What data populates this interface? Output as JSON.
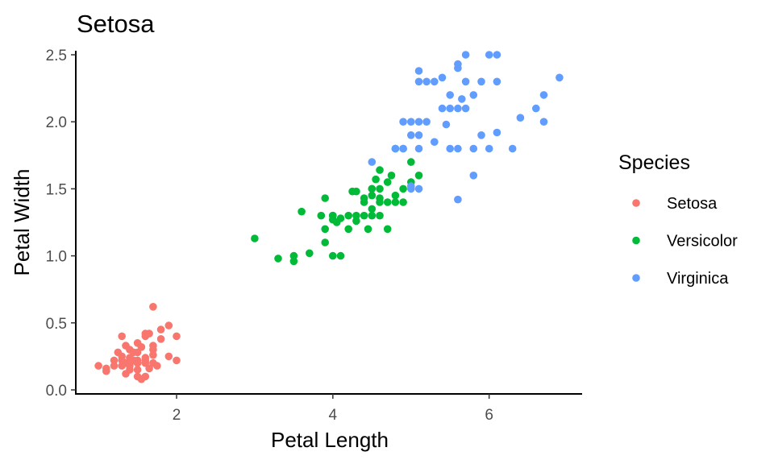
{
  "chart_data": {
    "type": "scatter",
    "title": "Setosa",
    "xlabel": "Petal Length",
    "ylabel": "Petal Width",
    "xlim": [
      0.71,
      7.19
    ],
    "ylim": [
      -0.03,
      2.53
    ],
    "x_ticks": [
      2,
      4,
      6
    ],
    "x_tick_labels": [
      "2",
      "4",
      "6"
    ],
    "y_ticks": [
      0,
      0.5,
      1,
      1.5,
      2,
      2.5
    ],
    "y_tick_labels": [
      "0.0",
      "0.5",
      "1.0",
      "1.5",
      "2.0",
      "2.5"
    ],
    "grid": false,
    "legend": {
      "title": "Species",
      "position": "right"
    },
    "series": [
      {
        "name": "Setosa",
        "color": "#F8766D",
        "points": [
          [
            1.0,
            0.18
          ],
          [
            1.1,
            0.14
          ],
          [
            1.2,
            0.18
          ],
          [
            1.2,
            0.22
          ],
          [
            1.3,
            0.18
          ],
          [
            1.3,
            0.25
          ],
          [
            1.3,
            0.22
          ],
          [
            1.3,
            0.4
          ],
          [
            1.35,
            0.2
          ],
          [
            1.35,
            0.33
          ],
          [
            1.4,
            0.2
          ],
          [
            1.4,
            0.15
          ],
          [
            1.4,
            0.24
          ],
          [
            1.4,
            0.3
          ],
          [
            1.4,
            0.2
          ],
          [
            1.4,
            0.18
          ],
          [
            1.45,
            0.28
          ],
          [
            1.5,
            0.2
          ],
          [
            1.5,
            0.1
          ],
          [
            1.5,
            0.22
          ],
          [
            1.5,
            0.15
          ],
          [
            1.5,
            0.28
          ],
          [
            1.5,
            0.35
          ],
          [
            1.5,
            0.2
          ],
          [
            1.55,
            0.08
          ],
          [
            1.6,
            0.2
          ],
          [
            1.6,
            0.22
          ],
          [
            1.6,
            0.4
          ],
          [
            1.6,
            0.42
          ],
          [
            1.6,
            0.24
          ],
          [
            1.65,
            0.16
          ],
          [
            1.7,
            0.33
          ],
          [
            1.7,
            0.62
          ],
          [
            1.7,
            0.2
          ],
          [
            1.7,
            0.26
          ],
          [
            1.75,
            0.18
          ],
          [
            1.8,
            0.45
          ],
          [
            1.8,
            0.38
          ],
          [
            1.9,
            0.25
          ],
          [
            1.9,
            0.48
          ],
          [
            1.6,
            0.1
          ],
          [
            1.25,
            0.28
          ],
          [
            1.45,
            0.22
          ],
          [
            1.55,
            0.32
          ],
          [
            1.65,
            0.42
          ],
          [
            1.35,
            0.12
          ],
          [
            1.7,
            0.3
          ],
          [
            2.0,
            0.22
          ],
          [
            2.0,
            0.4
          ],
          [
            1.1,
            0.16
          ]
        ]
      },
      {
        "name": "Versicolor",
        "color": "#00BA38",
        "points": [
          [
            3.0,
            1.13
          ],
          [
            3.3,
            0.98
          ],
          [
            3.5,
            1.0
          ],
          [
            3.5,
            0.96
          ],
          [
            3.6,
            1.33
          ],
          [
            3.7,
            1.02
          ],
          [
            3.9,
            1.1
          ],
          [
            3.9,
            1.43
          ],
          [
            3.9,
            1.2
          ],
          [
            4.0,
            1.0
          ],
          [
            4.0,
            1.3
          ],
          [
            4.0,
            1.27
          ],
          [
            4.0,
            1.3
          ],
          [
            4.05,
            1.25
          ],
          [
            4.1,
            1.0
          ],
          [
            4.1,
            1.28
          ],
          [
            4.2,
            1.3
          ],
          [
            4.2,
            1.2
          ],
          [
            4.3,
            1.3
          ],
          [
            4.3,
            1.26
          ],
          [
            4.3,
            1.48
          ],
          [
            4.4,
            1.43
          ],
          [
            4.4,
            1.3
          ],
          [
            4.4,
            1.4
          ],
          [
            4.45,
            1.2
          ],
          [
            4.5,
            1.5
          ],
          [
            4.5,
            1.45
          ],
          [
            4.5,
            1.5
          ],
          [
            4.5,
            1.3
          ],
          [
            4.5,
            1.35
          ],
          [
            4.6,
            1.5
          ],
          [
            4.6,
            1.43
          ],
          [
            4.6,
            1.3
          ],
          [
            4.6,
            1.4
          ],
          [
            4.6,
            1.64
          ],
          [
            4.7,
            1.4
          ],
          [
            4.7,
            1.2
          ],
          [
            4.7,
            1.55
          ],
          [
            4.8,
            1.4
          ],
          [
            4.8,
            1.8
          ],
          [
            4.8,
            1.45
          ],
          [
            4.9,
            1.5
          ],
          [
            4.9,
            1.4
          ],
          [
            5.0,
            1.7
          ],
          [
            5.0,
            1.55
          ],
          [
            5.1,
            1.6
          ],
          [
            4.75,
            1.6
          ],
          [
            4.25,
            1.48
          ],
          [
            4.55,
            1.57
          ],
          [
            3.85,
            1.3
          ]
        ]
      },
      {
        "name": "Virginica",
        "color": "#619CFF",
        "points": [
          [
            4.5,
            1.7
          ],
          [
            4.8,
            1.8
          ],
          [
            4.9,
            1.8
          ],
          [
            4.9,
            2.0
          ],
          [
            4.9,
            1.8
          ],
          [
            5.0,
            1.5
          ],
          [
            5.0,
            2.0
          ],
          [
            5.0,
            1.9
          ],
          [
            5.0,
            1.52
          ],
          [
            5.1,
            2.38
          ],
          [
            5.1,
            2.0
          ],
          [
            5.1,
            1.9
          ],
          [
            5.1,
            2.3
          ],
          [
            5.1,
            1.8
          ],
          [
            5.1,
            1.5
          ],
          [
            5.2,
            2.3
          ],
          [
            5.2,
            2.0
          ],
          [
            5.3,
            2.3
          ],
          [
            5.3,
            1.85
          ],
          [
            5.4,
            2.1
          ],
          [
            5.4,
            2.33
          ],
          [
            5.5,
            1.8
          ],
          [
            5.5,
            2.1
          ],
          [
            5.5,
            2.2
          ],
          [
            5.6,
            2.4
          ],
          [
            5.6,
            2.43
          ],
          [
            5.6,
            2.1
          ],
          [
            5.6,
            1.8
          ],
          [
            5.6,
            1.42
          ],
          [
            5.7,
            2.5
          ],
          [
            5.7,
            2.3
          ],
          [
            5.7,
            2.1
          ],
          [
            5.8,
            1.8
          ],
          [
            5.8,
            1.6
          ],
          [
            5.8,
            2.2
          ],
          [
            5.9,
            2.3
          ],
          [
            5.9,
            1.9
          ],
          [
            6.0,
            2.5
          ],
          [
            6.0,
            1.8
          ],
          [
            6.1,
            2.5
          ],
          [
            6.1,
            2.3
          ],
          [
            6.1,
            1.92
          ],
          [
            6.3,
            1.8
          ],
          [
            6.4,
            2.03
          ],
          [
            6.6,
            2.1
          ],
          [
            6.7,
            2.2
          ],
          [
            6.7,
            2.0
          ],
          [
            6.9,
            2.33
          ],
          [
            5.65,
            2.17
          ],
          [
            5.45,
            1.98
          ]
        ]
      }
    ]
  }
}
